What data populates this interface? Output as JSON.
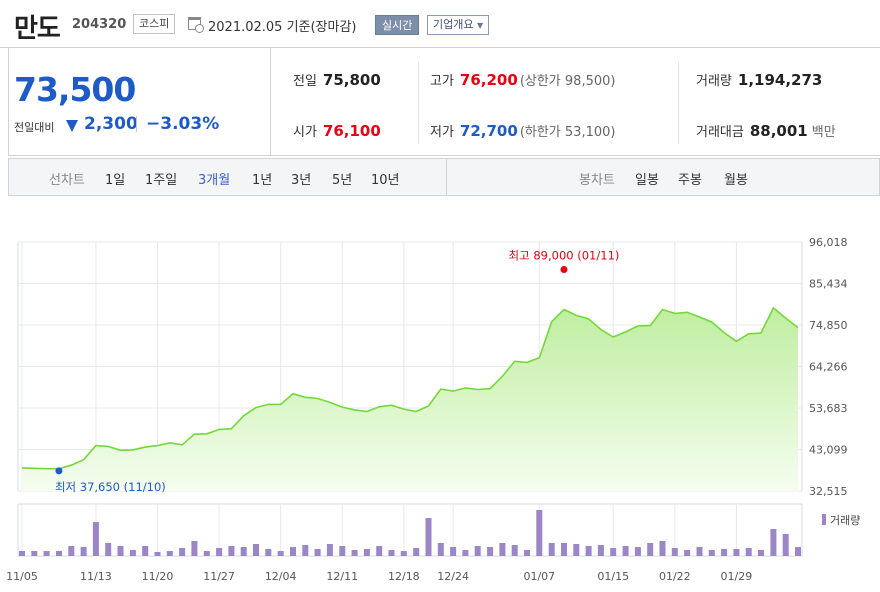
{
  "header": {
    "stock_name": "만도",
    "stock_code": "204320",
    "market": "코스피",
    "date_text": "2021.02.05 기준(장마감)",
    "realtime_label": "실시간",
    "overview_label": "기업개요",
    "calendar_icon": "calendar-clock-icon"
  },
  "summary": {
    "current_price": "73,500",
    "change_label": "전일대비",
    "change_direction_icon": "down-triangle-icon",
    "change_amount": "2,300",
    "change_pct": "−3.03%",
    "prev_close_label": "전일",
    "prev_close": "75,800",
    "open_label": "시가",
    "open": "76,100",
    "high_label": "고가",
    "high": "76,200",
    "upper_limit": "(상한가 98,500)",
    "low_label": "저가",
    "low": "72,700",
    "lower_limit": "(하한가 53,100)",
    "volume_label": "거래량",
    "volume": "1,194,273",
    "value_label": "거래대금",
    "value": "88,001",
    "value_unit": "백만"
  },
  "colors": {
    "up": "#e60012",
    "down": "#1e5bc6",
    "line": "#73d83a",
    "volume": "#9b86c8"
  },
  "tabs": {
    "line_label": "선차트",
    "periods": [
      "1일",
      "1주일",
      "3개월",
      "1년",
      "3년",
      "5년",
      "10년"
    ],
    "active_period": "3개월",
    "candle_label": "봉차트",
    "candles": [
      "일봉",
      "주봉",
      "월봉"
    ]
  },
  "chart_data": {
    "type": "area",
    "x": [
      "11/05",
      "11/06",
      "11/09",
      "11/10",
      "11/11",
      "11/12",
      "11/13",
      "11/16",
      "11/17",
      "11/18",
      "11/19",
      "11/20",
      "11/23",
      "11/24",
      "11/25",
      "11/26",
      "11/27",
      "11/30",
      "12/01",
      "12/02",
      "12/03",
      "12/04",
      "12/07",
      "12/08",
      "12/09",
      "12/10",
      "12/11",
      "12/14",
      "12/15",
      "12/16",
      "12/17",
      "12/18",
      "12/21",
      "12/22",
      "12/23",
      "12/24",
      "12/28",
      "12/29",
      "12/30",
      "01/04",
      "01/05",
      "01/06",
      "01/07",
      "01/08",
      "01/11",
      "01/12",
      "01/13",
      "01/14",
      "01/15",
      "01/18",
      "01/19",
      "01/20",
      "01/21",
      "01/22",
      "01/25",
      "01/26",
      "01/27",
      "01/28",
      "01/29",
      "02/01",
      "02/02",
      "02/03",
      "02/04",
      "02/05"
    ],
    "values": [
      38400,
      38300,
      38200,
      38200,
      39100,
      40500,
      44100,
      43900,
      42900,
      43000,
      43700,
      44100,
      44800,
      44300,
      47000,
      47100,
      48200,
      48400,
      51700,
      53800,
      54600,
      54600,
      57300,
      56400,
      56100,
      55100,
      53900,
      53200,
      52800,
      54000,
      54400,
      53400,
      52800,
      54200,
      58500,
      58000,
      58800,
      58400,
      58600,
      61800,
      65600,
      65300,
      66500,
      75700,
      78800,
      77300,
      76400,
      73700,
      71800,
      73100,
      74600,
      74700,
      78800,
      77800,
      78100,
      76900,
      75600,
      72900,
      70700,
      72600,
      72800,
      79200,
      76600,
      74200
    ],
    "volumes": [
      0.05,
      0.05,
      0.05,
      0.05,
      0.1,
      0.09,
      0.34,
      0.13,
      0.1,
      0.06,
      0.1,
      0.04,
      0.05,
      0.08,
      0.15,
      0.05,
      0.08,
      0.1,
      0.09,
      0.12,
      0.07,
      0.05,
      0.09,
      0.11,
      0.07,
      0.12,
      0.1,
      0.06,
      0.07,
      0.1,
      0.06,
      0.05,
      0.08,
      0.38,
      0.13,
      0.09,
      0.06,
      0.1,
      0.09,
      0.13,
      0.11,
      0.06,
      0.46,
      0.13,
      0.13,
      0.12,
      0.1,
      0.11,
      0.08,
      0.1,
      0.09,
      0.13,
      0.15,
      0.08,
      0.06,
      0.09,
      0.06,
      0.07,
      0.07,
      0.08,
      0.06,
      0.27,
      0.22,
      0.09
    ],
    "x_ticks": [
      "11/05",
      "11/13",
      "11/20",
      "11/27",
      "12/04",
      "12/11",
      "12/18",
      "12/24",
      "01/07",
      "01/15",
      "01/22",
      "01/29"
    ],
    "y_ticks": [
      "96,018",
      "85,434",
      "74,850",
      "64,266",
      "53,683",
      "43,099",
      "32,515"
    ],
    "ylim": [
      32515,
      96018
    ],
    "max_annotation": "최고 89,000 (01/11)",
    "max_value": 89000,
    "max_date": "01/11",
    "min_annotation": "최저 37,650 (11/10)",
    "min_value": 37650,
    "min_date": "11/10",
    "volume_legend": "거래량",
    "grid": true
  }
}
